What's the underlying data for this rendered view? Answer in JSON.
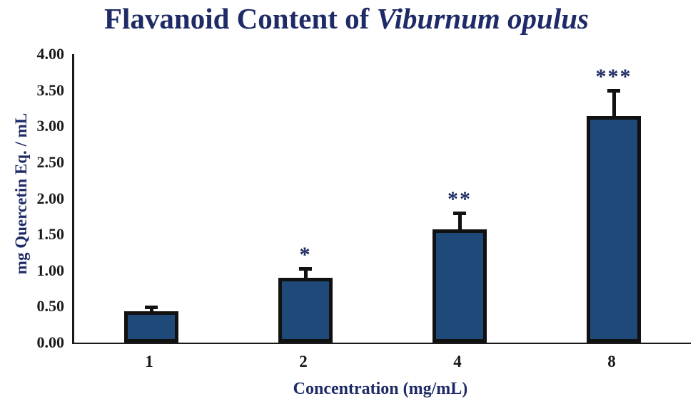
{
  "title": {
    "prefix": "Flavanoid Content of ",
    "italic": "Viburnum opulus"
  },
  "chart_data": {
    "type": "bar",
    "title": "Flavanoid Content of Viburnum opulus",
    "categories": [
      "1",
      "2",
      "4",
      "8"
    ],
    "values": [
      0.43,
      0.9,
      1.57,
      3.14
    ],
    "error_plus": [
      0.08,
      0.15,
      0.25,
      0.38
    ],
    "significance": [
      "",
      "*",
      "**",
      "***"
    ],
    "xlabel": "Concentration (mg/mL)",
    "ylabel": "mg Quercetin Eq. / mL",
    "ylim": [
      0,
      4
    ],
    "ytick_step": 0.5,
    "yticks": [
      "0.00",
      "0.50",
      "1.00",
      "1.50",
      "2.00",
      "2.50",
      "3.00",
      "3.50",
      "4.00"
    ],
    "grid": false,
    "legend": "none",
    "bar_color": "#1F4979",
    "bar_border_color": "#111111",
    "error_color": "#111111",
    "significance_color": "#1E2A63",
    "title_color": "#1F2B66",
    "tick_label_color": "#1a1a1a"
  }
}
